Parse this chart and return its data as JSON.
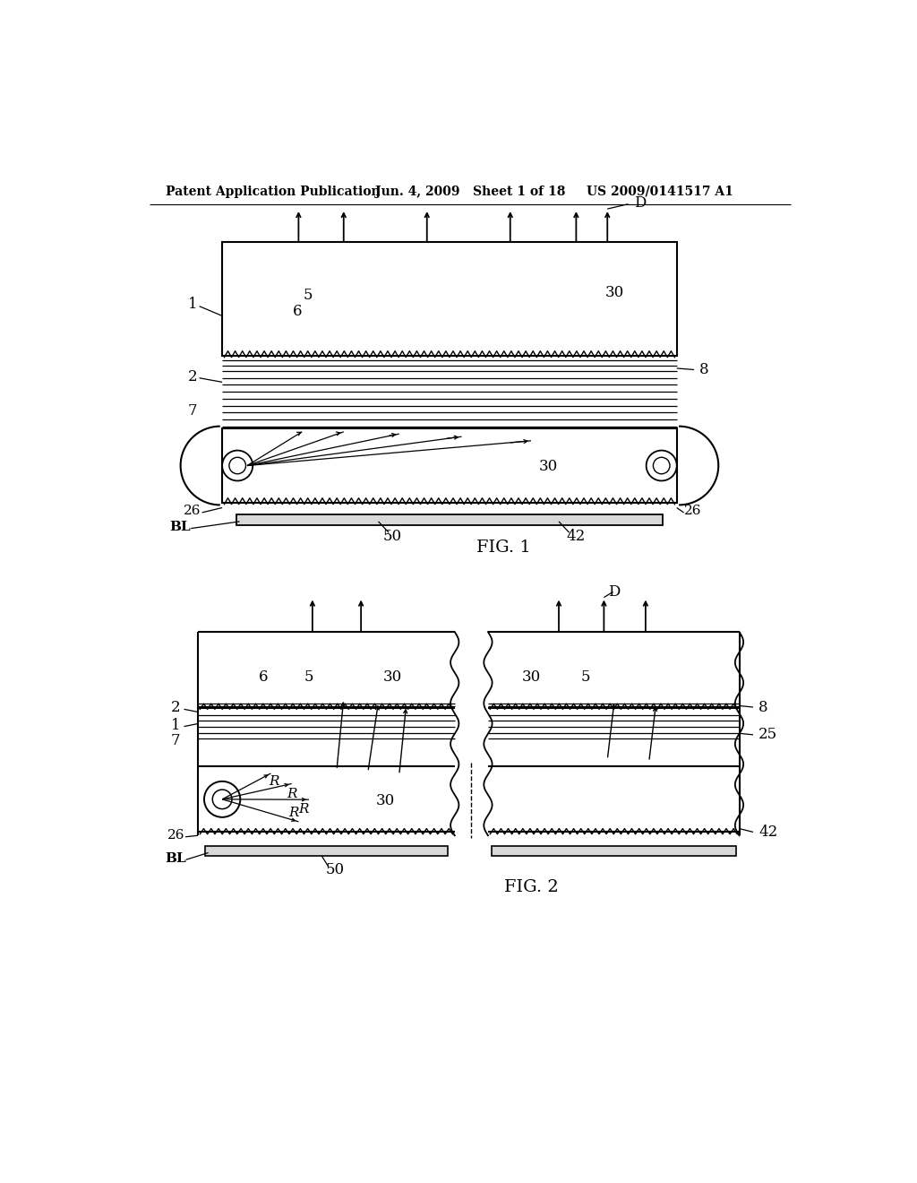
{
  "bg_color": "#ffffff",
  "line_color": "#000000",
  "header_text": "Patent Application Publication",
  "header_date": "Jun. 4, 2009   Sheet 1 of 18",
  "header_patent": "US 2009/0141517 A1"
}
